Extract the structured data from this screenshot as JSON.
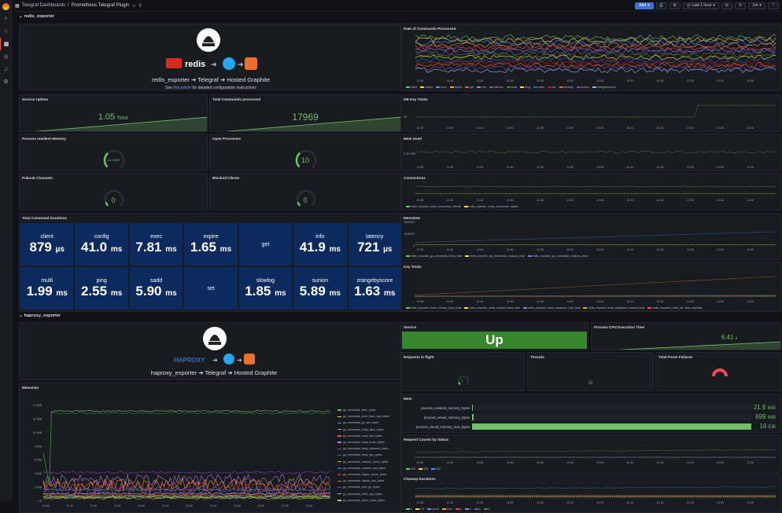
{
  "nav": {
    "icons": [
      "grafana-logo",
      "search-icon",
      "star-icon",
      "dashboards-icon",
      "explore-icon",
      "alerting-icon",
      "connections-icon"
    ]
  },
  "topbar": {
    "folder": "Telegraf Dashboards",
    "sep": "/",
    "title": "Prometheus Telegraf Plugin",
    "add": "Add",
    "time": "Last 1 hour",
    "refresh": "1m"
  },
  "redis_row": {
    "title": "redis_exporter"
  },
  "haproxy_row": {
    "title": "haproxy_exporter"
  },
  "redis_intro": {
    "logo_text": "redis",
    "flow": "redis_exporter ➔ Telegraf ➔ Hosted Graphite",
    "see": "See",
    "link": "this article",
    "after": "for detailed configuration instructions"
  },
  "haproxy_intro": {
    "logo_text": "HAPROXY",
    "flow": "haproxy_exporter ➔ Telegraf ➔ Hosted Graphite"
  },
  "panels": {
    "service_uptime": {
      "title": "Service Uptime",
      "value": "1.05",
      "unit": "hour"
    },
    "total_commands": {
      "title": "Total Commands processed",
      "value": "17969"
    },
    "process_memory": {
      "title": "Process resident Memory",
      "value": "14.4 MiB",
      "fraction": 0.35
    },
    "open_processes": {
      "title": "Open Processes",
      "value": "10",
      "fraction": 0.35
    },
    "pubsub": {
      "title": "Pubsub Channels",
      "value": "0",
      "fraction": 0
    },
    "blocked": {
      "title": "Blocked Clients",
      "value": "0",
      "fraction": 0
    },
    "durations": {
      "title": "Total Command Durations"
    },
    "rate_cmds": {
      "title": "Rate of Commands Processed"
    },
    "db_keys": {
      "title": "DB Key Totals",
      "y": "50"
    },
    "mem_used": {
      "title": "Mem Used",
      "y": "2.90 MiB"
    },
    "connections": {
      "title": "Connections"
    },
    "memstats": {
      "title": "Memstats",
      "y": [
        "5000000",
        "2500000",
        "0"
      ]
    },
    "key_totals": {
      "title": "Key Totals"
    },
    "service": {
      "title": "Service",
      "value": "Up"
    },
    "cpu_time": {
      "title": "Process CPU Execution Time",
      "value": "6.41",
      "unit": "s"
    },
    "requests_flight": {
      "title": "Requests in flight",
      "value": "1"
    },
    "threads": {
      "title": "Threads",
      "value": "10"
    },
    "parse_failures": {
      "title": "Total Parse Failures"
    },
    "ha_memstats": {
      "title": "Memstats",
      "y": [
        "14 MiB",
        "12 MiB",
        "10 MiB",
        "8 MiB",
        "6 MiB",
        "4 MiB",
        "2 MiB",
        "0 B"
      ]
    },
    "mem": {
      "title": "Mem"
    },
    "req_status": {
      "title": "Request Counts by Status"
    },
    "cleanup": {
      "title": "Cleanup Durations"
    }
  },
  "durations": [
    {
      "name": "client",
      "value": "879",
      "unit": "µs"
    },
    {
      "name": "config",
      "value": "41.0",
      "unit": "ms"
    },
    {
      "name": "exec",
      "value": "7.81",
      "unit": "ms"
    },
    {
      "name": "expire",
      "value": "1.65",
      "unit": "ms"
    },
    {
      "name": "get",
      "value": "",
      "unit": ""
    },
    {
      "name": "info",
      "value": "41.9",
      "unit": "ms"
    },
    {
      "name": "latency",
      "value": "721",
      "unit": "µs"
    },
    {
      "name": "multi",
      "value": "1.99",
      "unit": "ms"
    },
    {
      "name": "ping",
      "value": "2.55",
      "unit": "ms"
    },
    {
      "name": "sadd",
      "value": "5.90",
      "unit": "ms"
    },
    {
      "name": "set",
      "value": "",
      "unit": ""
    },
    {
      "name": "slowlog",
      "value": "1.85",
      "unit": "ms"
    },
    {
      "name": "sunion",
      "value": "5.89",
      "unit": "ms"
    },
    {
      "name": "zrangebyscore",
      "value": "1.63",
      "unit": "ms"
    }
  ],
  "xaxis": [
    "11:35",
    "11:40",
    "11:45",
    "11:50",
    "11:55",
    "12:00",
    "12:05",
    "12:10",
    "12:15",
    "12:20",
    "12:25",
    "12:30"
  ],
  "legends": {
    "rate": [
      {
        "n": "client",
        "c": "#73bf69"
      },
      {
        "n": "config",
        "c": "#fade2a"
      },
      {
        "n": "exec",
        "c": "#5794f2"
      },
      {
        "n": "expire",
        "c": "#ff9830"
      },
      {
        "n": "get",
        "c": "#f2495c"
      },
      {
        "n": "info",
        "c": "#b877d9"
      },
      {
        "n": "latency",
        "c": "#705da0"
      },
      {
        "n": "multi",
        "c": "#37872d"
      },
      {
        "n": "ping",
        "c": "#fade2a"
      },
      {
        "n": "sadd",
        "c": "#1f60c4"
      },
      {
        "n": "set",
        "c": "#c4162a"
      },
      {
        "n": "slowlog",
        "c": "#fa6400"
      },
      {
        "n": "sunion",
        "c": "#8f3bb8"
      },
      {
        "n": "zrangebyscore",
        "c": "#8ab8ff"
      }
    ],
    "conn": [
      {
        "n": "redis_exporter_redis_connected_clients",
        "c": "#73bf69"
      },
      {
        "n": "redis_exporter_redis_connected_slaves",
        "c": "#fade2a"
      }
    ],
    "memstats": [
      {
        "n": "redis_exporter_go_memstats_frees_total",
        "c": "#73bf69"
      },
      {
        "n": "redis_exporter_go_memstats_lookups_total",
        "c": "#fade2a"
      },
      {
        "n": "redis_exporter_go_memstats_mallocs_total",
        "c": "#5794f2"
      }
    ],
    "keys": [
      {
        "n": "redis_exporter_redis_evicted_keys_total",
        "c": "#73bf69"
      },
      {
        "n": "redis_exporter_redis_expired_keys_total",
        "c": "#fade2a"
      },
      {
        "n": "redis_exporter_redis_keyspace_hits_total",
        "c": "#5794f2"
      },
      {
        "n": "redis_exporter_redis_keyspace_misses_total",
        "c": "#ff9830"
      },
      {
        "n": "redis_exporter_redis_db_keys_expiring",
        "c": "#f2495c"
      }
    ],
    "status": [
      {
        "n": "200",
        "c": "#73bf69"
      },
      {
        "n": "300",
        "c": "#fade2a"
      },
      {
        "n": "503",
        "c": "#5794f2"
      }
    ],
    "cleanup": [
      {
        "n": "0",
        "c": "#73bf69"
      },
      {
        "n": "0.5",
        "c": "#fade2a"
      },
      {
        "n": "count",
        "c": "#5794f2"
      },
      {
        "n": "sum",
        "c": "#ff9830"
      },
      {
        "n": "0",
        "c": "#f2495c"
      },
      {
        "n": "0",
        "c": "#b877d9"
      },
      {
        "n": "0",
        "c": "#705da0"
      },
      {
        "n": "0",
        "c": "#37872d"
      }
    ],
    "ha_mem": [
      {
        "n": "go_memstats_alloc_bytes",
        "c": "#73bf69"
      },
      {
        "n": "go_memstats_buck_hash_sys_bytes",
        "c": "#fade2a"
      },
      {
        "n": "go_memstats_gc_sys_bytes",
        "c": "#5794f2"
      },
      {
        "n": "go_memstats_heap_alloc_bytes",
        "c": "#ff9830"
      },
      {
        "n": "go_memstats_heap_idle_bytes",
        "c": "#f2495c"
      },
      {
        "n": "go_memstats_heap_inuse_bytes",
        "c": "#b877d9"
      },
      {
        "n": "go_memstats_heap_released_bytes",
        "c": "#705da0"
      },
      {
        "n": "go_memstats_heap_sys_bytes",
        "c": "#37872d"
      },
      {
        "n": "go_memstats_mcache_inuse_bytes",
        "c": "#e0b400"
      },
      {
        "n": "go_memstats_mcache_sys_bytes",
        "c": "#1f60c4"
      },
      {
        "n": "go_memstats_mspan_inuse_bytes",
        "c": "#c4162a"
      },
      {
        "n": "go_memstats_mspan_sys_bytes",
        "c": "#fa6400"
      },
      {
        "n": "go_memstats_next_gc_bytes",
        "c": "#8f3bb8"
      },
      {
        "n": "go_memstats_other_sys_bytes",
        "c": "#8ab8ff"
      },
      {
        "n": "go_memstats_stack_inuse_bytes",
        "c": "#96d98d"
      }
    ]
  },
  "mem_bars": [
    {
      "label": "process_resident_memory_bytes",
      "value": "21.6",
      "unit": "MiB",
      "fraction": 0.003
    },
    {
      "label": "process_virtual_memory_bytes",
      "value": "699",
      "unit": "MiB",
      "fraction": 0.005
    },
    {
      "label": "process_virtual_memory_max_bytes",
      "value": "16",
      "unit": "EiB",
      "fraction": 1.0
    }
  ]
}
